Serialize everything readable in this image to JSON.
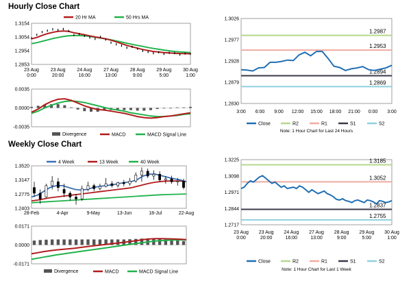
{
  "sections": {
    "hourly_title": "Hourly Close Chart",
    "weekly_title": "Weekly Close Chart"
  },
  "chart_data": [
    {
      "id": "hourly_price",
      "type": "line",
      "title": "",
      "ylim": [
        1.2853,
        1.3154
      ],
      "yticks": [
        "1.3154",
        "1.3054",
        "1.2954",
        "1.2853"
      ],
      "xticks": [
        "23 Aug\n0:00",
        "23 Aug\n20:00",
        "24 Aug\n16:00",
        "27 Aug\n13:00",
        "28 Aug\n9:00",
        "29 Aug\n5:00",
        "30 Aug\n1:00"
      ],
      "legend": [
        "20 Hr MA",
        "50 Hrs MA"
      ],
      "colors": {
        "close": "#000000",
        "ma20": "#b11b1b",
        "ma50": "#1fb24a"
      },
      "series": [
        {
          "name": "Close",
          "values": [
            1.3045,
            1.307,
            1.309,
            1.31,
            1.311,
            1.3105,
            1.3112,
            1.3098,
            1.3068,
            1.3075,
            1.3062,
            1.305,
            1.304,
            1.3055,
            1.3035,
            1.3012,
            1.3,
            1.299,
            1.2975,
            1.2982,
            1.2968,
            1.2952,
            1.2944,
            1.2935,
            1.2942,
            1.293,
            1.2938,
            1.2936,
            1.2925,
            1.2933,
            1.293
          ]
        },
        {
          "name": "20 Hr MA",
          "values": [
            1.304,
            1.305,
            1.3065,
            1.3078,
            1.3088,
            1.3095,
            1.3098,
            1.3095,
            1.3085,
            1.3078,
            1.307,
            1.3062,
            1.3054,
            1.3048,
            1.304,
            1.303,
            1.3018,
            1.3005,
            1.2992,
            1.2982,
            1.2972,
            1.2962,
            1.2955,
            1.2948,
            1.2944,
            1.294,
            1.2937,
            1.2935,
            1.2933,
            1.2932,
            1.2931
          ]
        },
        {
          "name": "50 Hrs MA",
          "values": [
            1.3005,
            1.3012,
            1.3022,
            1.3032,
            1.3042,
            1.305,
            1.3057,
            1.3062,
            1.3064,
            1.3064,
            1.3062,
            1.3058,
            1.3052,
            1.3046,
            1.304,
            1.3033,
            1.3025,
            1.3017,
            1.3008,
            1.3,
            1.2992,
            1.2985,
            1.2977,
            1.297,
            1.2964,
            1.2958,
            1.2953,
            1.2948,
            1.2945,
            1.2942,
            1.294
          ]
        }
      ]
    },
    {
      "id": "hourly_macd",
      "type": "line",
      "ylim": [
        -0.0035,
        0.0035
      ],
      "yticks": [
        "0.0035",
        "0.0000",
        "-0.0035"
      ],
      "legend": [
        "Divergence",
        "MACD",
        "MACD Signal Line"
      ],
      "colors": {
        "divergence": "#555555",
        "macd": "#b11b1b",
        "signal": "#1fb24a"
      },
      "series": [
        {
          "name": "MACD",
          "values": [
            -0.0008,
            -0.0002,
            0.0006,
            0.0012,
            0.0016,
            0.0017,
            0.0014,
            0.0009,
            0.0004,
            0.0,
            -0.0003,
            -0.0004,
            -0.0006,
            -0.0008,
            -0.001,
            -0.0013,
            -0.0016,
            -0.0018,
            -0.0019,
            -0.0018,
            -0.0016,
            -0.0015,
            -0.0013,
            -0.0011,
            -0.0009
          ]
        },
        {
          "name": "MACD Signal Line",
          "values": [
            -0.001,
            -0.0006,
            0.0,
            0.0005,
            0.0009,
            0.0012,
            0.0013,
            0.0012,
            0.001,
            0.0007,
            0.0004,
            0.0001,
            -0.0002,
            -0.0004,
            -0.0006,
            -0.0009,
            -0.0011,
            -0.0013,
            -0.0015,
            -0.0016,
            -0.0016,
            -0.0015,
            -0.0014,
            -0.0012,
            -0.0011
          ]
        },
        {
          "name": "Divergence",
          "values": [
            0.0002,
            0.0004,
            0.0006,
            0.0007,
            0.0007,
            0.0005,
            0.0001,
            -0.0003,
            -0.0006,
            -0.0007,
            -0.0007,
            -0.0005,
            -0.0004,
            -0.0004,
            -0.0004,
            -0.0004,
            -0.0005,
            -0.0005,
            -0.0004,
            -0.0002,
            0.0,
            0.0,
            0.0001,
            0.0001,
            0.0002
          ]
        }
      ]
    },
    {
      "id": "hourly_24h",
      "type": "line",
      "ylim": [
        1.283,
        1.3026
      ],
      "yticks": [
        "1.3026",
        "1.2977",
        "1.2928",
        "1.2879",
        "1.2830"
      ],
      "xticks": [
        "3:00",
        "6:00",
        "9:00",
        "12:00",
        "15:00",
        "18:00",
        "21:00",
        "0:00",
        "3:00"
      ],
      "legend": [
        "Close",
        "R2",
        "R1",
        "S1",
        "S2"
      ],
      "note": "Note: 1 Hour Chart for Last 24 Hours",
      "colors": {
        "close": "#1f6fb5",
        "R2": "#b5d98a",
        "R1": "#f0aaa0",
        "S1": "#3a3a4a",
        "S2": "#8fd0e0"
      },
      "levels": [
        {
          "name": "R2",
          "value": 1.2987,
          "label": "1.2987"
        },
        {
          "name": "R1",
          "value": 1.2953,
          "label": "1.2953"
        },
        {
          "name": "S1",
          "value": 1.2894,
          "label": "1.2894"
        },
        {
          "name": "S2",
          "value": 1.2869,
          "label": "1.2869"
        }
      ],
      "series": [
        {
          "name": "Close",
          "values": [
            1.2908,
            1.2907,
            1.2905,
            1.2912,
            1.2913,
            1.2925,
            1.2925,
            1.2927,
            1.293,
            1.2929,
            1.2942,
            1.2948,
            1.294,
            1.295,
            1.295,
            1.2934,
            1.2916,
            1.2913,
            1.2906,
            1.291,
            1.2912,
            1.2915,
            1.2908,
            1.2906,
            1.2909,
            1.2912,
            1.2918
          ]
        }
      ]
    },
    {
      "id": "weekly_price",
      "type": "line",
      "ylim": [
        1.2403,
        1.352
      ],
      "yticks": [
        "1.3520",
        "1.3147",
        "1.2775",
        "1.2403"
      ],
      "xticks": [
        "28-Feb",
        "4-Apr",
        "9-May",
        "13-Jun",
        "18-Jul",
        "22-Aug"
      ],
      "legend": [
        "4 Week",
        "13 Week",
        "40 Week"
      ],
      "colors": {
        "w4": "#3a6fb5",
        "w13": "#b11b1b",
        "w40": "#1fb24a",
        "candle": "#000000"
      },
      "candles": [
        {
          "o": 1.295,
          "h": 1.31,
          "l": 1.27,
          "c": 1.28
        },
        {
          "o": 1.28,
          "h": 1.29,
          "l": 1.252,
          "c": 1.265
        },
        {
          "o": 1.27,
          "h": 1.305,
          "l": 1.268,
          "c": 1.3
        },
        {
          "o": 1.3,
          "h": 1.325,
          "l": 1.29,
          "c": 1.312
        },
        {
          "o": 1.31,
          "h": 1.32,
          "l": 1.285,
          "c": 1.295
        },
        {
          "o": 1.29,
          "h": 1.305,
          "l": 1.27,
          "c": 1.28
        },
        {
          "o": 1.28,
          "h": 1.285,
          "l": 1.26,
          "c": 1.27
        },
        {
          "o": 1.27,
          "h": 1.278,
          "l": 1.25,
          "c": 1.265
        },
        {
          "o": 1.265,
          "h": 1.3,
          "l": 1.26,
          "c": 1.292
        },
        {
          "o": 1.29,
          "h": 1.31,
          "l": 1.285,
          "c": 1.3
        },
        {
          "o": 1.3,
          "h": 1.305,
          "l": 1.285,
          "c": 1.292
        },
        {
          "o": 1.292,
          "h": 1.305,
          "l": 1.288,
          "c": 1.298
        },
        {
          "o": 1.298,
          "h": 1.32,
          "l": 1.295,
          "c": 1.305
        },
        {
          "o": 1.305,
          "h": 1.312,
          "l": 1.295,
          "c": 1.3
        },
        {
          "o": 1.3,
          "h": 1.31,
          "l": 1.295,
          "c": 1.308
        },
        {
          "o": 1.308,
          "h": 1.315,
          "l": 1.298,
          "c": 1.305
        },
        {
          "o": 1.305,
          "h": 1.32,
          "l": 1.3,
          "c": 1.312
        },
        {
          "o": 1.312,
          "h": 1.335,
          "l": 1.308,
          "c": 1.328
        },
        {
          "o": 1.328,
          "h": 1.348,
          "l": 1.31,
          "c": 1.338
        },
        {
          "o": 1.338,
          "h": 1.345,
          "l": 1.32,
          "c": 1.325
        },
        {
          "o": 1.325,
          "h": 1.34,
          "l": 1.315,
          "c": 1.33
        },
        {
          "o": 1.33,
          "h": 1.338,
          "l": 1.31,
          "c": 1.315
        },
        {
          "o": 1.315,
          "h": 1.325,
          "l": 1.305,
          "c": 1.318
        },
        {
          "o": 1.318,
          "h": 1.326,
          "l": 1.305,
          "c": 1.31
        },
        {
          "o": 1.31,
          "h": 1.32,
          "l": 1.3,
          "c": 1.312
        },
        {
          "o": 1.312,
          "h": 1.318,
          "l": 1.29,
          "c": 1.295
        }
      ],
      "series": [
        {
          "name": "4 Week",
          "values": [
            1.27,
            1.275,
            1.285,
            1.295,
            1.3,
            1.3,
            1.295,
            1.29,
            1.288,
            1.29,
            1.295,
            1.298,
            1.3,
            1.302,
            1.305,
            1.308,
            1.31,
            1.315,
            1.325,
            1.33,
            1.33,
            1.326,
            1.322,
            1.318,
            1.315,
            1.31
          ]
        },
        {
          "name": "13 Week",
          "values": [
            1.26,
            1.262,
            1.265,
            1.268,
            1.27,
            1.272,
            1.274,
            1.276,
            1.278,
            1.28,
            1.282,
            1.284,
            1.286,
            1.288,
            1.29,
            1.292,
            1.294,
            1.298,
            1.302,
            1.306,
            1.309,
            1.311,
            1.312,
            1.312,
            1.312,
            1.311
          ]
        },
        {
          "name": "40 Week",
          "values": [
            1.255,
            1.256,
            1.257,
            1.258,
            1.259,
            1.26,
            1.261,
            1.262,
            1.263,
            1.264,
            1.265,
            1.266,
            1.267,
            1.268,
            1.269,
            1.27,
            1.271,
            1.272,
            1.273,
            1.274,
            1.275,
            1.276,
            1.2765,
            1.277,
            1.2775,
            1.278
          ]
        }
      ]
    },
    {
      "id": "weekly_macd",
      "type": "line",
      "ylim": [
        -0.0171,
        0.0171
      ],
      "yticks": [
        "0.0171",
        "0.0000",
        "-0.0171"
      ],
      "legend": [
        "Divergence",
        "MACD",
        "MACD Signal Line"
      ],
      "colors": {
        "divergence": "#555555",
        "macd": "#b11b1b",
        "signal": "#1fb24a"
      },
      "series": [
        {
          "name": "MACD",
          "values": [
            -0.008,
            -0.007,
            -0.006,
            -0.0052,
            -0.0045,
            -0.004,
            -0.0035,
            -0.003,
            -0.0022,
            -0.0015,
            -0.0008,
            -0.0002,
            0.0005,
            0.0012,
            0.0018,
            0.0025,
            0.0032,
            0.004,
            0.0048,
            0.0055,
            0.0058,
            0.0058,
            0.0056,
            0.0054,
            0.0052,
            0.0048
          ]
        },
        {
          "name": "MACD Signal Line",
          "values": [
            -0.013,
            -0.012,
            -0.011,
            -0.01,
            -0.009,
            -0.0082,
            -0.0074,
            -0.0066,
            -0.0058,
            -0.005,
            -0.0042,
            -0.0034,
            -0.0026,
            -0.0018,
            -0.001,
            -0.0002,
            0.0006,
            0.0014,
            0.0022,
            0.003,
            0.0036,
            0.004,
            0.0043,
            0.0045,
            0.0046,
            0.0046
          ]
        },
        {
          "name": "Divergence",
          "values": [
            0.004,
            0.0045,
            0.0048,
            0.005,
            0.005,
            0.005,
            0.005,
            0.005,
            0.005,
            0.005,
            0.005,
            0.005,
            0.005,
            0.005,
            0.005,
            0.005,
            0.0052,
            0.0055,
            0.0058,
            0.006,
            0.006,
            0.0055,
            0.005,
            0.0045,
            0.004,
            0.0035
          ]
        }
      ]
    },
    {
      "id": "weekly_hourly",
      "type": "line",
      "ylim": [
        1.2717,
        1.3225
      ],
      "yticks": [
        "1.3225",
        "1.3098",
        "1.2971",
        "1.2844",
        "1.2717"
      ],
      "xticks": [
        "23 Aug\n0:00",
        "23 Aug\n20:00",
        "24 Aug\n16:00",
        "27 Aug\n13:00",
        "28 Aug\n9:00",
        "29 Aug\n5:00",
        "30 Aug\n1:00"
      ],
      "legend": [
        "Close",
        "R2",
        "R1",
        "S1",
        "S2"
      ],
      "note": "Note: 1 Hour Chart for Last 1 Week",
      "colors": {
        "close": "#1f6fb5",
        "R2": "#b5d98a",
        "R1": "#f0aaa0",
        "S1": "#3a3a4a",
        "S2": "#8fd0e0"
      },
      "levels": [
        {
          "name": "R2",
          "value": 1.3185,
          "label": "1.3185"
        },
        {
          "name": "R1",
          "value": 1.3052,
          "label": "1.3052"
        },
        {
          "name": "S1",
          "value": 1.2837,
          "label": "1.2837"
        },
        {
          "name": "S2",
          "value": 1.2755,
          "label": "1.2755"
        }
      ],
      "series": [
        {
          "name": "Close",
          "values": [
            1.3,
            1.301,
            1.304,
            1.306,
            1.305,
            1.307,
            1.309,
            1.31,
            1.308,
            1.306,
            1.304,
            1.305,
            1.303,
            1.301,
            1.302,
            1.3,
            1.3005,
            1.301,
            1.3,
            1.302,
            1.301,
            1.299,
            1.297,
            1.299,
            1.2975,
            1.296,
            1.297,
            1.298,
            1.296,
            1.295,
            1.2935,
            1.2915,
            1.291,
            1.292,
            1.2905,
            1.29,
            1.289,
            1.2905,
            1.291,
            1.29,
            1.289,
            1.291,
            1.2905,
            1.2895,
            1.288,
            1.2905,
            1.29,
            1.289,
            1.2895,
            1.2905
          ]
        }
      ]
    }
  ]
}
